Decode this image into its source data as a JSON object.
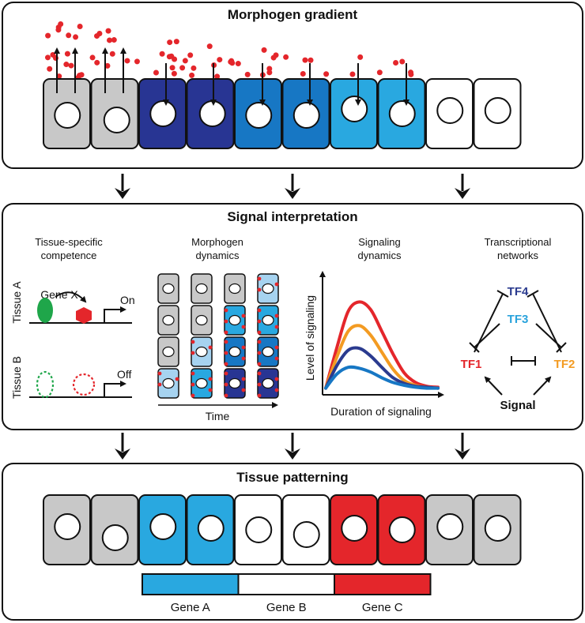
{
  "colors": {
    "gray": "#c8c8c8",
    "navy": "#283593",
    "mid_blue": "#1777c4",
    "light_blue": "#29a8e0",
    "pale_blue": "#a6d3f0",
    "white": "#ffffff",
    "red": "#e4262b",
    "orange": "#f39b22",
    "green": "#1fa64a",
    "tf_blue": "#2aa3dc",
    "tf_navy": "#2b3b8f"
  },
  "gradient": {
    "title": "Morphogen gradient",
    "cells": [
      "gray",
      "gray",
      "navy",
      "navy",
      "mid_blue",
      "mid_blue",
      "light_blue",
      "light_blue",
      "white",
      "white"
    ]
  },
  "interpretation": {
    "title": "Signal interpretation",
    "competence": {
      "title": [
        "Tissue-specific",
        "competence"
      ],
      "gene_label": "Gene X",
      "tissue_a": "Tissue A",
      "tissue_b": "Tissue B",
      "on_label": "On",
      "off_label": "Off"
    },
    "dynamics": {
      "title": [
        "Morphogen",
        "dynamics"
      ],
      "time_label": "Time",
      "columns": [
        [
          "gray",
          "gray",
          "gray",
          "pale_blue"
        ],
        [
          "gray",
          "gray",
          "pale_blue",
          "light_blue"
        ],
        [
          "gray",
          "light_blue",
          "mid_blue",
          "navy"
        ],
        [
          "pale_blue",
          "light_blue",
          "mid_blue",
          "navy"
        ]
      ]
    },
    "signaling": {
      "title": [
        "Signaling",
        "dynamics"
      ],
      "xlabel": "Duration of signaling",
      "ylabel": "Level of signaling"
    },
    "networks": {
      "title": [
        "Transcriptional",
        "networks"
      ],
      "tf1": "TF1",
      "tf2": "TF2",
      "tf3": "TF3",
      "tf4": "TF4",
      "signal": "Signal"
    }
  },
  "chart_data": {
    "type": "line",
    "xlabel": "Duration of signaling",
    "ylabel": "Level of signaling",
    "x": [
      0,
      0.1,
      0.2,
      0.3,
      0.4,
      0.5,
      0.6,
      0.7,
      0.8,
      0.9,
      1.0
    ],
    "series": [
      {
        "color": "red",
        "values": [
          0.02,
          0.45,
          0.83,
          0.93,
          0.85,
          0.62,
          0.38,
          0.18,
          0.08,
          0.04,
          0.03
        ]
      },
      {
        "color": "orange",
        "values": [
          0.02,
          0.35,
          0.62,
          0.68,
          0.58,
          0.4,
          0.22,
          0.1,
          0.05,
          0.03,
          0.02
        ]
      },
      {
        "color": "tf_navy",
        "values": [
          0.02,
          0.26,
          0.42,
          0.44,
          0.36,
          0.24,
          0.13,
          0.07,
          0.04,
          0.03,
          0.02
        ]
      },
      {
        "color": "mid_blue",
        "values": [
          0.02,
          0.17,
          0.24,
          0.23,
          0.19,
          0.13,
          0.08,
          0.05,
          0.03,
          0.02,
          0.02
        ]
      }
    ]
  },
  "patterning": {
    "title": "Tissue patterning",
    "cells": [
      "gray",
      "gray",
      "light_blue",
      "light_blue",
      "white",
      "white",
      "red",
      "red",
      "gray",
      "gray"
    ],
    "genes": [
      {
        "label": "Gene A",
        "color": "light_blue"
      },
      {
        "label": "Gene B",
        "color": "white"
      },
      {
        "label": "Gene C",
        "color": "red"
      }
    ]
  }
}
